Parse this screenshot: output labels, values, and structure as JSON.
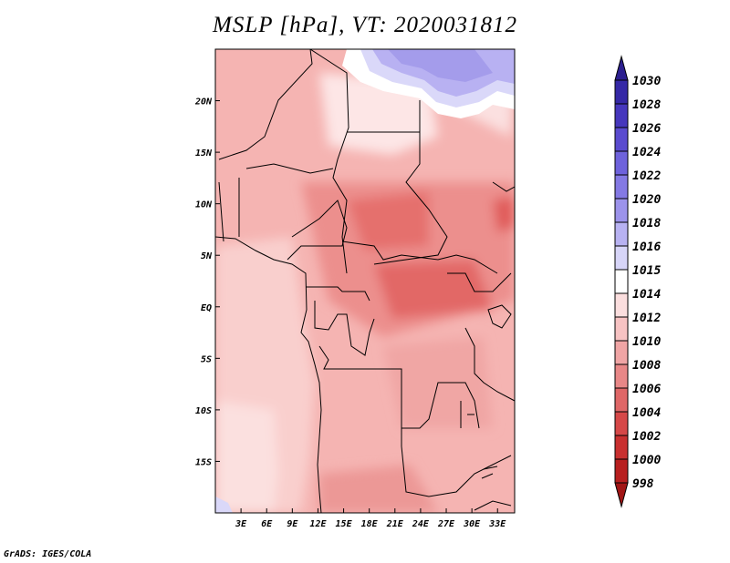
{
  "title": "MSLP [hPa], VT: 2020031812",
  "footer": "GrADS: IGES/COLA",
  "map": {
    "lon_range": [
      0,
      35
    ],
    "lat_range": [
      -20,
      25
    ],
    "lat_ticks": [
      {
        "value": 20,
        "label": "20N"
      },
      {
        "value": 15,
        "label": "15N"
      },
      {
        "value": 10,
        "label": "10N"
      },
      {
        "value": 5,
        "label": "5N"
      },
      {
        "value": 0,
        "label": "EQ"
      },
      {
        "value": -5,
        "label": "5S"
      },
      {
        "value": -10,
        "label": "10S"
      },
      {
        "value": -15,
        "label": "15S"
      }
    ],
    "lon_ticks": [
      {
        "value": 3,
        "label": "3E"
      },
      {
        "value": 6,
        "label": "6E"
      },
      {
        "value": 9,
        "label": "9E"
      },
      {
        "value": 12,
        "label": "12E"
      },
      {
        "value": 15,
        "label": "15E"
      },
      {
        "value": 18,
        "label": "18E"
      },
      {
        "value": 21,
        "label": "21E"
      },
      {
        "value": 24,
        "label": "24E"
      },
      {
        "value": 27,
        "label": "27E"
      },
      {
        "value": 30,
        "label": "30E"
      },
      {
        "value": 33,
        "label": "33E"
      }
    ]
  },
  "colorbar": {
    "labels": [
      "1030",
      "1028",
      "1026",
      "1024",
      "1022",
      "1020",
      "1018",
      "1016",
      "1015",
      "1014",
      "1012",
      "1010",
      "1008",
      "1006",
      "1004",
      "1002",
      "1000",
      "998"
    ],
    "colors": [
      "#2c1f8f",
      "#3528a6",
      "#4637bd",
      "#5a4bcf",
      "#6e62dc",
      "#8479e4",
      "#9c93eb",
      "#b8b2f2",
      "#d7d5f8",
      "#ffffff",
      "#fbdede",
      "#f7c3c3",
      "#f0a5a5",
      "#e88787",
      "#df6767",
      "#d64848",
      "#c93030",
      "#b81f1f",
      "#a11515"
    ]
  },
  "colors": {
    "low_pressure": "#e26868",
    "high_pressure": "#a49ceb",
    "border": "#000000"
  }
}
